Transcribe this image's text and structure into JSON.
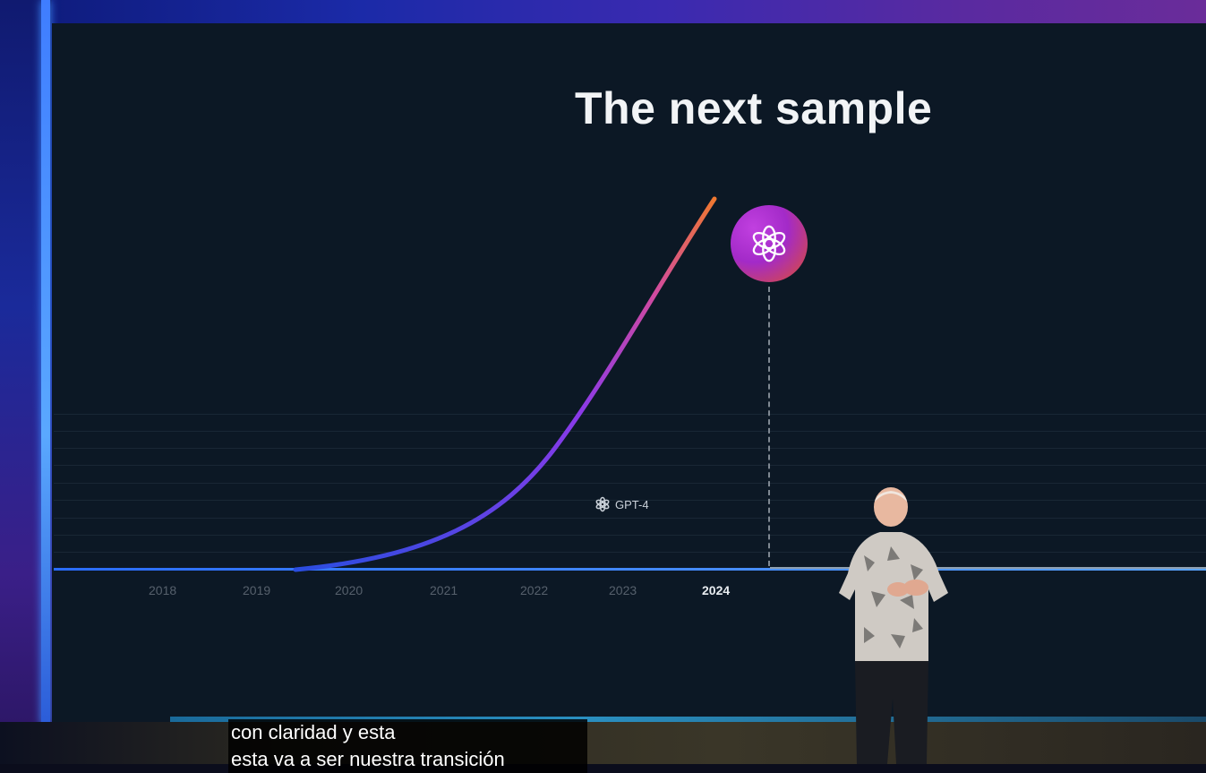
{
  "slide": {
    "title": "The next sample",
    "marker_label": "GPT-4",
    "years": [
      "2018",
      "2019",
      "2020",
      "2021",
      "2022",
      "2023",
      "2024"
    ],
    "current_year": "2024"
  },
  "subtitles": {
    "line1": "con claridad y esta",
    "line2": "esta va a ser nuestra transición"
  },
  "colors": {
    "curve_start": "#2a4de0",
    "curve_mid": "#a03ae0",
    "curve_end": "#f07830",
    "stage_accent": "#3c8cff"
  },
  "icons": {
    "badge": "openai-logo-icon",
    "marker": "openai-logo-icon"
  }
}
